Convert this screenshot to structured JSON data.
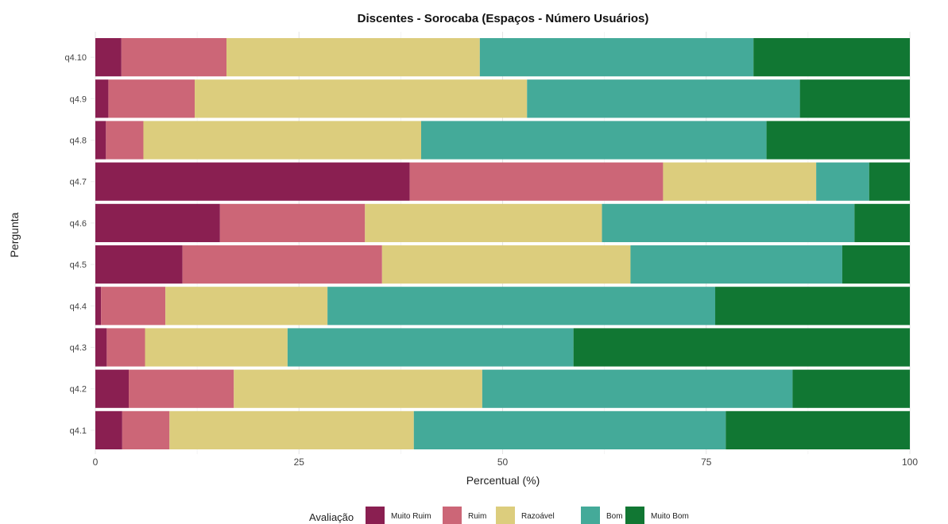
{
  "chart_data": {
    "type": "bar",
    "orientation": "horizontal",
    "stacked": true,
    "title": "Discentes - Sorocaba (Espaços - Número Usuários)",
    "xlabel": "Percentual (%)",
    "ylabel": "Pergunta",
    "xlim": [
      0,
      100
    ],
    "xticks": [
      "0",
      "25",
      "50",
      "75",
      "100"
    ],
    "grid": true,
    "legend_position": "bottom",
    "legend_title": "Avaliação",
    "categories": [
      "q4.10",
      "q4.9",
      "q4.8",
      "q4.7",
      "q4.6",
      "q4.5",
      "q4.4",
      "q4.3",
      "q4.2",
      "q4.1"
    ],
    "series": [
      {
        "name": "Muito Ruim",
        "color": "#8a1f51",
        "values": [
          3.2,
          1.6,
          1.3,
          38.6,
          15.3,
          10.7,
          0.7,
          1.4,
          4.1,
          3.3
        ]
      },
      {
        "name": "Ruim",
        "color": "#cc6677",
        "values": [
          12.9,
          10.6,
          4.6,
          31.1,
          17.8,
          24.5,
          7.9,
          4.7,
          12.9,
          5.8
        ]
      },
      {
        "name": "Razoável",
        "color": "#dccd7d",
        "values": [
          31.1,
          40.8,
          34.1,
          18.8,
          29.1,
          30.5,
          19.9,
          17.5,
          30.5,
          30.0
        ]
      },
      {
        "name": "Bom",
        "color": "#44aa99",
        "values": [
          33.6,
          33.5,
          42.4,
          6.5,
          31.0,
          26.0,
          47.6,
          35.1,
          38.1,
          38.3
        ]
      },
      {
        "name": "Muito Bom",
        "color": "#117733",
        "values": [
          19.2,
          13.5,
          17.6,
          5.0,
          6.8,
          8.3,
          23.9,
          41.3,
          14.4,
          22.6
        ]
      }
    ]
  }
}
